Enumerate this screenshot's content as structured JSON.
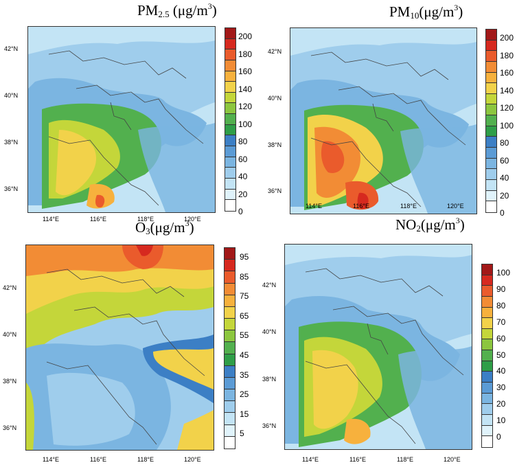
{
  "panels": [
    {
      "title_main": "PM",
      "title_sub": "2.5",
      "title_unit": "(μg/m",
      "title_sup": "3",
      "title_close": ")",
      "colorbar": {
        "labels": [
          "0",
          "20",
          "40",
          "60",
          "80",
          "100",
          "120",
          "140",
          "160",
          "180",
          "200"
        ],
        "colors": [
          "#ffffff",
          "#e0f3fb",
          "#c3e4f5",
          "#9fcdec",
          "#7bb5e1",
          "#5b9bd5",
          "#3c7fc5",
          "#2f9e48",
          "#52b04e",
          "#8cc63f",
          "#c4d63a",
          "#f2d24a",
          "#f7b13d",
          "#f28c35",
          "#ea5b2c",
          "#d6291f",
          "#a21818"
        ]
      },
      "lat_labels": [
        "42°N",
        "40°N",
        "38°N",
        "36°N"
      ],
      "lon_labels": [
        "114°E",
        "116°E",
        "118°E",
        "120°E"
      ]
    },
    {
      "title_main": "PM",
      "title_sub": "10",
      "title_unit": "(μg/m",
      "title_sup": "3",
      "title_close": ")",
      "colorbar": {
        "labels": [
          "0",
          "20",
          "40",
          "60",
          "80",
          "100",
          "120",
          "140",
          "160",
          "180",
          "200"
        ],
        "colors": [
          "#ffffff",
          "#e0f3fb",
          "#c3e4f5",
          "#9fcdec",
          "#7bb5e1",
          "#5b9bd5",
          "#3c7fc5",
          "#2f9e48",
          "#52b04e",
          "#8cc63f",
          "#c4d63a",
          "#f2d24a",
          "#f7b13d",
          "#f28c35",
          "#ea5b2c",
          "#d6291f",
          "#a21818"
        ]
      },
      "lat_labels": [
        "42°N",
        "40°N",
        "38°N",
        "36°N"
      ],
      "lon_labels": [
        "114°E",
        "116°E",
        "118°E",
        "120°E"
      ]
    },
    {
      "title_main": "O",
      "title_sub": "3",
      "title_unit": "(μg/m",
      "title_sup": "3",
      "title_close": ")",
      "colorbar": {
        "labels": [
          "5",
          "15",
          "25",
          "35",
          "45",
          "55",
          "65",
          "75",
          "85",
          "95"
        ],
        "colors": [
          "#ffffff",
          "#e0f3fb",
          "#c3e4f5",
          "#9fcdec",
          "#7bb5e1",
          "#5b9bd5",
          "#3c7fc5",
          "#2f9e48",
          "#52b04e",
          "#8cc63f",
          "#c4d63a",
          "#f2d24a",
          "#f7b13d",
          "#f28c35",
          "#ea5b2c",
          "#d6291f",
          "#a21818"
        ]
      },
      "lat_labels": [
        "42°N",
        "40°N",
        "38°N",
        "36°N"
      ],
      "lon_labels": [
        "114°E",
        "116°E",
        "118°E",
        "120°E"
      ]
    },
    {
      "title_main": "NO",
      "title_sub": "2",
      "title_unit": "(μg/m",
      "title_sup": "3",
      "title_close": ")",
      "colorbar": {
        "labels": [
          "0",
          "10",
          "20",
          "30",
          "40",
          "50",
          "60",
          "70",
          "80",
          "90",
          "100"
        ],
        "colors": [
          "#ffffff",
          "#e0f3fb",
          "#c3e4f5",
          "#9fcdec",
          "#7bb5e1",
          "#5b9bd5",
          "#3c7fc5",
          "#2f9e48",
          "#52b04e",
          "#8cc63f",
          "#c4d63a",
          "#f2d24a",
          "#f7b13d",
          "#f28c35",
          "#ea5b2c",
          "#d6291f",
          "#a21818"
        ]
      },
      "lat_labels": [
        "42°N",
        "40°N",
        "38°N",
        "36°N"
      ],
      "lon_labels": [
        "114°E",
        "116°E",
        "118°E",
        "120°E"
      ]
    }
  ]
}
